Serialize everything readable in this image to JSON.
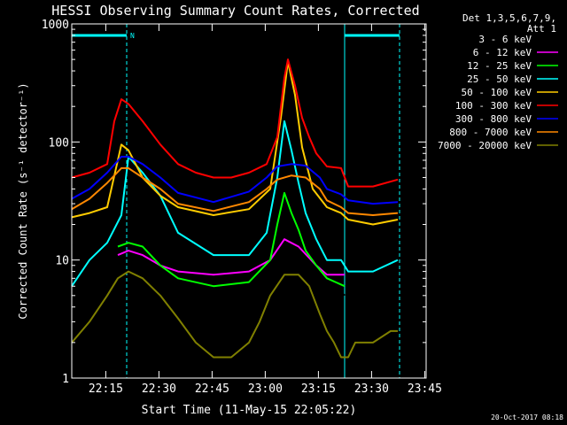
{
  "chart_data": {
    "type": "line",
    "title": "HESSI Observing Summary Count Rates, Corrected",
    "xlabel": "Start Time (11-May-15 22:05:22)",
    "ylabel": "Corrected Count Rate (s⁻¹ detector⁻¹)",
    "x_unit": "minutes after 22:05:22",
    "xlim": [
      0,
      100
    ],
    "ylim": [
      1,
      1000
    ],
    "yscale": "log",
    "x_ticks": [
      {
        "label": "22:15",
        "value": 9.6
      },
      {
        "label": "22:30",
        "value": 24.6
      },
      {
        "label": "22:45",
        "value": 39.6
      },
      {
        "label": "23:00",
        "value": 54.6
      },
      {
        "label": "23:15",
        "value": 69.6
      },
      {
        "label": "23:30",
        "value": 84.6
      },
      {
        "label": "23:45",
        "value": 99.6
      }
    ],
    "y_ticks": [
      {
        "label": "1",
        "value": 1
      },
      {
        "label": "10",
        "value": 10
      },
      {
        "label": "100",
        "value": 100
      },
      {
        "label": "1000",
        "value": 1000
      }
    ],
    "legend": {
      "position": "top-right",
      "header": [
        "Det 1,3,5,6,7,9,",
        "Att 1"
      ]
    },
    "series": [
      {
        "name": "3 - 6 keV",
        "color": "#000000",
        "x": [
          7,
          14,
          20,
          30,
          40,
          50,
          56,
          60,
          64,
          69,
          73,
          77
        ],
        "y": [
          12,
          14,
          12,
          8,
          6,
          6.5,
          9,
          17,
          15,
          9,
          7,
          5
        ]
      },
      {
        "name": "6 - 12 keV",
        "color": "#ff00ff",
        "x": [
          13,
          16,
          20,
          25,
          30,
          40,
          50,
          56,
          60,
          64,
          69,
          72,
          77
        ],
        "y": [
          11,
          12,
          11,
          9,
          8,
          7.5,
          8,
          10,
          15,
          13,
          9,
          7.5,
          7.5
        ]
      },
      {
        "name": "12 - 25 keV",
        "color": "#00ff00",
        "x": [
          13,
          16,
          20,
          25,
          30,
          40,
          50,
          56,
          58,
          60,
          62,
          64,
          66,
          69,
          72,
          77
        ],
        "y": [
          13,
          14,
          13,
          9,
          7,
          6,
          6.5,
          10,
          20,
          37,
          25,
          18,
          12,
          9,
          7,
          6
        ]
      },
      {
        "name": "25 - 50 keV",
        "color": "#00ffff",
        "x": [
          0,
          5,
          10,
          14,
          16,
          20,
          25,
          30,
          40,
          50,
          55,
          58,
          60,
          62,
          64,
          66,
          69,
          72,
          76,
          78,
          85,
          92
        ],
        "y": [
          6,
          10,
          14,
          24,
          75,
          55,
          35,
          17,
          11,
          11,
          17,
          50,
          150,
          85,
          45,
          25,
          15,
          10,
          10,
          8,
          8,
          10
        ]
      },
      {
        "name": "50 - 100 keV",
        "color": "#ffcc00",
        "x": [
          0,
          5,
          10,
          14,
          16,
          20,
          25,
          30,
          40,
          50,
          56,
          59,
          61,
          63,
          65,
          68,
          72,
          76,
          78,
          85,
          92
        ],
        "y": [
          23,
          25,
          28,
          95,
          85,
          50,
          35,
          28,
          24,
          27,
          40,
          160,
          480,
          250,
          90,
          40,
          28,
          25,
          22,
          20,
          22
        ]
      },
      {
        "name": "100 - 300 keV",
        "color": "#ff0000",
        "x": [
          0,
          5,
          10,
          12,
          14,
          16,
          20,
          25,
          30,
          35,
          40,
          45,
          50,
          55,
          58,
          60,
          61,
          63,
          65,
          67,
          69,
          72,
          76,
          78,
          85,
          92
        ],
        "y": [
          50,
          55,
          65,
          150,
          230,
          210,
          150,
          95,
          65,
          55,
          50,
          50,
          55,
          65,
          110,
          350,
          500,
          300,
          160,
          110,
          80,
          62,
          60,
          42,
          42,
          48
        ]
      },
      {
        "name": "300 - 800 keV",
        "color": "#0000ff",
        "x": [
          0,
          5,
          10,
          14,
          16,
          20,
          25,
          30,
          40,
          50,
          55,
          58,
          62,
          66,
          70,
          72,
          76,
          78,
          85,
          92
        ],
        "y": [
          33,
          40,
          55,
          75,
          75,
          65,
          50,
          37,
          31,
          38,
          50,
          62,
          65,
          63,
          50,
          40,
          36,
          32,
          30,
          31
        ]
      },
      {
        "name": "800 - 7000 keV",
        "color": "#ff8800",
        "x": [
          0,
          5,
          10,
          14,
          16,
          20,
          25,
          30,
          40,
          50,
          55,
          58,
          62,
          66,
          70,
          72,
          76,
          78,
          85,
          92
        ],
        "y": [
          27,
          33,
          45,
          60,
          60,
          50,
          40,
          30,
          26,
          31,
          40,
          48,
          52,
          50,
          40,
          32,
          28,
          25,
          24,
          25
        ]
      },
      {
        "name": "7000 - 20000 keV",
        "color": "#808000",
        "x": [
          0,
          5,
          10,
          13,
          16,
          20,
          25,
          30,
          35,
          40,
          45,
          50,
          53,
          56,
          60,
          64,
          67,
          70,
          72,
          74,
          76,
          78,
          80,
          85,
          90,
          92
        ],
        "y": [
          2,
          3,
          5,
          7,
          8,
          7,
          5,
          3.2,
          2,
          1.5,
          1.5,
          2,
          3,
          5,
          7.5,
          7.5,
          6,
          3.5,
          2.5,
          2,
          1.5,
          1.5,
          2,
          2,
          2.5,
          2.5
        ]
      }
    ],
    "attenuator_intervals": [
      {
        "x0": 0,
        "x1": 15.5,
        "label": "N"
      },
      {
        "x0": 77,
        "x1": 92.5,
        "label": ""
      }
    ],
    "footer_timestamp": "20-Oct-2017 08:18"
  }
}
